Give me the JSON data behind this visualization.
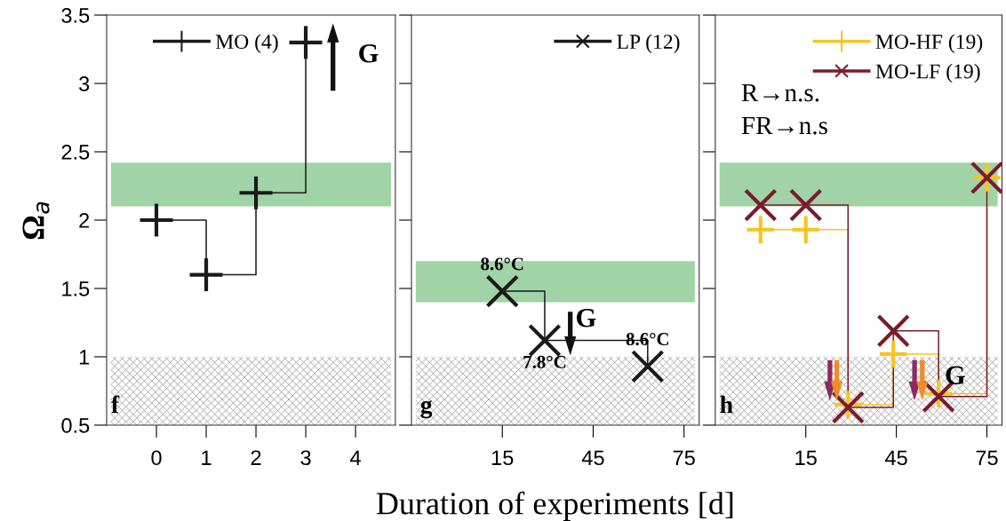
{
  "chart_data": [
    {
      "type": "step",
      "ylabel": "Ω$_{a}$",
      "x": [
        0,
        1,
        2,
        3
      ],
      "xlim": [
        -1,
        4.8
      ],
      "xticks": [
        0,
        1,
        2,
        3,
        4
      ],
      "ylim": [
        0.5,
        3.5
      ],
      "yticks": [
        0.5,
        1,
        1.5,
        2,
        2.5,
        3,
        3.5
      ],
      "legend": "top left",
      "series": [
        {
          "name": "MO (4)",
          "color": "#1a1a1a",
          "values": [
            2.0,
            1.6,
            2.2,
            3.3
          ],
          "errors": [
            0.12,
            0.12,
            0.12,
            0.12
          ],
          "xerrors": [
            0.33,
            0.33,
            0.33,
            0.33
          ]
        }
      ],
      "bands": [
        {
          "axis": "y",
          "from": 2.1,
          "to": 2.42,
          "color": "#a0d3a6"
        },
        {
          "axis": "y",
          "from": 0.5,
          "to": 1.0,
          "color": "#9a9a9a"
        }
      ],
      "annotations": [
        "G",
        "f"
      ]
    },
    {
      "type": "step",
      "xlabel": "Duration of experiments [d]",
      "x": [
        15,
        29,
        63
      ],
      "xlim": [
        -15,
        80
      ],
      "xticks": [
        15,
        45,
        75
      ],
      "ylim": [
        0.5,
        3.5
      ],
      "yticks": [
        0.5,
        1,
        1.5,
        2,
        2.5,
        3,
        3.5
      ],
      "tick_labels": "x",
      "marker": "cross",
      "legend": "top right",
      "series": [
        {
          "name": "LP (12)",
          "color": "#1a1a1a",
          "values": [
            1.48,
            1.12,
            0.93
          ]
        }
      ],
      "bands": [
        {
          "axis": "y",
          "from": 1.4,
          "to": 1.7,
          "color": "#a0d3a6"
        },
        {
          "axis": "y",
          "from": 0.5,
          "to": 1.0,
          "color": "#9a9a9a"
        }
      ],
      "annotations": [
        {
          "text": "8.6°C",
          "x": 15,
          "y": 1.48
        },
        {
          "text": "7.8°C",
          "x": 29,
          "y": 1.12
        },
        {
          "text": "8.6°C",
          "x": 63,
          "y": 0.93
        },
        "G",
        "g"
      ]
    },
    {
      "type": "step",
      "x": [
        0,
        15,
        29,
        44,
        59,
        75
      ],
      "xlim": [
        -15,
        80
      ],
      "xticks": [
        15,
        45,
        75
      ],
      "ylim": [
        0.5,
        3.5
      ],
      "yticks": [
        0.5,
        1,
        1.5,
        2,
        2.5,
        3,
        3.5
      ],
      "tick_labels": "x",
      "legend": "top right",
      "series": [
        {
          "name": "MO-HF (19)",
          "color": "#f7c51e",
          "values": [
            1.93,
            1.93,
            0.65,
            1.02,
            0.73,
            2.31
          ],
          "errors": [
            0.1,
            0.1,
            0.1,
            0.1,
            0.1,
            0.1
          ],
          "xerrors": [
            4.5,
            4.5,
            4.5,
            4.5,
            4.5,
            4.5
          ]
        },
        {
          "name": "MO-LF (19)",
          "color": "#7b1b2e",
          "marker": "cross",
          "values": [
            2.11,
            2.11,
            0.63,
            1.19,
            0.71,
            2.31
          ]
        }
      ],
      "bands": [
        {
          "axis": "y",
          "from": 2.1,
          "to": 2.42,
          "color": "#a0d3a6"
        },
        {
          "axis": "y",
          "from": 0.5,
          "to": 1.0,
          "color": "#9a9a9a"
        }
      ],
      "annotations": [
        "R→n.s.",
        "FR→n.s",
        "G",
        "h"
      ]
    }
  ]
}
